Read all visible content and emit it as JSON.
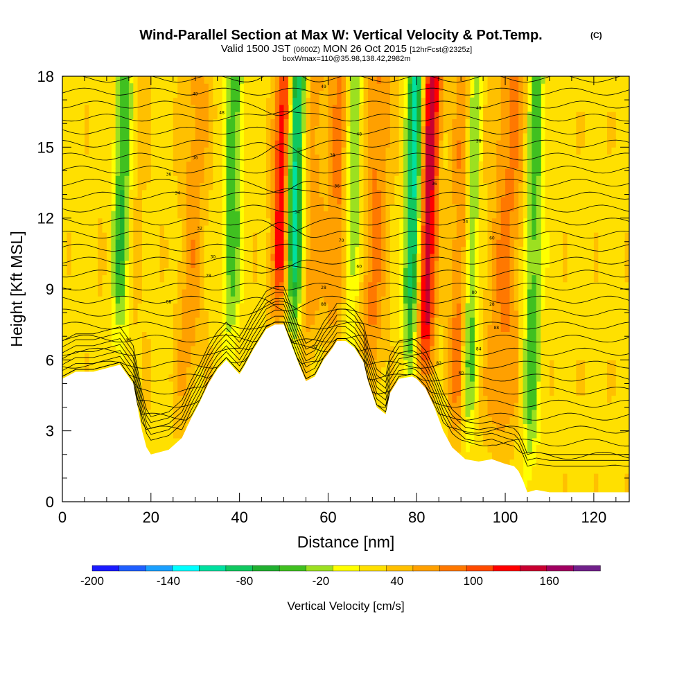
{
  "chart_data": {
    "type": "heatmap",
    "title": "Wind-Parallel Section at Max W: Vertical Velocity & Pot.Temp.",
    "title_mark": "(C)",
    "subtitle": {
      "valid_prefix": "Valid 1500 JST",
      "utc": "(0600Z)",
      "date": "MON 26 Oct 2015",
      "fcst": "[12hrFcst@2325z]"
    },
    "subtitle2": "boxWmax=110@35.98,138.42,2982m",
    "xlabel": "Distance [nm]",
    "ylabel": "Height [Kft MSL]",
    "xlim": [
      0,
      128
    ],
    "ylim": [
      0,
      18
    ],
    "x_ticks": [
      "0",
      "20",
      "40",
      "60",
      "80",
      "100",
      "120"
    ],
    "y_ticks": [
      "0",
      "3",
      "6",
      "9",
      "12",
      "15",
      "18"
    ],
    "colorbar": {
      "label": "Vertical Velocity [cm/s]",
      "tick_labels": [
        "-200",
        "-140",
        "-80",
        "-20",
        "40",
        "100",
        "160"
      ],
      "tick_values": [
        -200,
        -140,
        -80,
        -20,
        40,
        100,
        160
      ],
      "levels": [
        -200,
        -180,
        -160,
        -140,
        -120,
        -100,
        -80,
        -60,
        -40,
        -20,
        0,
        20,
        40,
        60,
        80,
        100,
        120,
        140,
        160,
        180
      ],
      "colors": [
        "#1a1aff",
        "#1f5fff",
        "#1aa0ff",
        "#00ffff",
        "#00e0a0",
        "#10c860",
        "#20b030",
        "#40c020",
        "#9ce020",
        "#ffff00",
        "#ffe000",
        "#ffc000",
        "#ffa000",
        "#ff7800",
        "#ff4a00",
        "#ff0000",
        "#c80030",
        "#a00060",
        "#70208a"
      ]
    },
    "terrain_profile": {
      "x": [
        0,
        3,
        7,
        13,
        16,
        18,
        19,
        20,
        24,
        27,
        29,
        31,
        33,
        35,
        37,
        39,
        40,
        41,
        43,
        44,
        46,
        48,
        50,
        51,
        53,
        55,
        57,
        59,
        61,
        62,
        64,
        66,
        68,
        69,
        71,
        73,
        74,
        76,
        79,
        80,
        82,
        84,
        86,
        88,
        91,
        94,
        97,
        100,
        102,
        103,
        104,
        105,
        107,
        110,
        115,
        120,
        128
      ],
      "y": [
        5.2,
        5.5,
        5.5,
        5.8,
        5.0,
        3.0,
        2.3,
        2.0,
        2.2,
        2.7,
        3.5,
        4.2,
        5.0,
        5.6,
        6.0,
        5.6,
        5.4,
        5.7,
        6.4,
        6.7,
        7.3,
        7.5,
        7.5,
        7.0,
        6.0,
        5.1,
        5.3,
        6.0,
        6.5,
        6.8,
        6.8,
        6.5,
        5.9,
        5.1,
        4.0,
        3.7,
        4.6,
        5.2,
        5.3,
        5.2,
        4.8,
        4.0,
        3.0,
        2.3,
        1.8,
        1.7,
        1.8,
        1.6,
        1.5,
        1.3,
        0.9,
        0.4,
        0.5,
        0.4,
        0.4,
        0.4,
        0.4
      ]
    },
    "updraft_columns": [
      {
        "x": 14,
        "w": 0.15,
        "width": 4.0
      },
      {
        "x": 29,
        "w": 0.3,
        "width": 3.0
      },
      {
        "x": 49,
        "w": 1.0,
        "width": 2.0
      },
      {
        "x": 55,
        "w": 0.35,
        "width": 3.0
      },
      {
        "x": 62,
        "w": 0.45,
        "width": 3.0
      },
      {
        "x": 70,
        "w": 0.4,
        "width": 3.0
      },
      {
        "x": 82,
        "w": 0.95,
        "width": 2.2
      },
      {
        "x": 90,
        "w": 0.5,
        "width": 2.5
      },
      {
        "x": 100,
        "w": 0.4,
        "width": 4.0
      }
    ],
    "downdraft_columns": [
      {
        "x": 13,
        "w": -0.6,
        "width": 2.0
      },
      {
        "x": 38,
        "w": -0.45,
        "width": 2.0
      },
      {
        "x": 52,
        "w": -1.0,
        "width": 2.2
      },
      {
        "x": 65,
        "w": -0.5,
        "width": 2.0
      },
      {
        "x": 79,
        "w": -0.85,
        "width": 1.8
      },
      {
        "x": 92,
        "w": -0.55,
        "width": 1.8
      },
      {
        "x": 106,
        "w": -0.45,
        "width": 2.0
      }
    ],
    "contour_labels": [
      {
        "x": 30,
        "y": 17.2,
        "text": "49"
      },
      {
        "x": 36,
        "y": 16.4,
        "text": "48"
      },
      {
        "x": 30,
        "y": 14.5,
        "text": "36"
      },
      {
        "x": 24,
        "y": 13.8,
        "text": "36"
      },
      {
        "x": 26,
        "y": 13.0,
        "text": "34"
      },
      {
        "x": 31,
        "y": 11.5,
        "text": "32"
      },
      {
        "x": 34,
        "y": 10.3,
        "text": "30"
      },
      {
        "x": 33,
        "y": 9.5,
        "text": "28"
      },
      {
        "x": 24,
        "y": 8.4,
        "text": "88"
      },
      {
        "x": 15,
        "y": 6.8,
        "text": "80"
      },
      {
        "x": 59,
        "y": 17.5,
        "text": "49"
      },
      {
        "x": 67,
        "y": 15.5,
        "text": "48"
      },
      {
        "x": 61,
        "y": 14.6,
        "text": "38"
      },
      {
        "x": 62,
        "y": 13.3,
        "text": "36"
      },
      {
        "x": 53,
        "y": 12.2,
        "text": "34"
      },
      {
        "x": 63,
        "y": 11.0,
        "text": "70"
      },
      {
        "x": 67,
        "y": 9.9,
        "text": "60"
      },
      {
        "x": 59,
        "y": 9.0,
        "text": "28"
      },
      {
        "x": 59,
        "y": 8.3,
        "text": "88"
      },
      {
        "x": 57,
        "y": 6.5,
        "text": "82"
      },
      {
        "x": 94,
        "y": 16.6,
        "text": "48"
      },
      {
        "x": 94,
        "y": 15.2,
        "text": "38"
      },
      {
        "x": 84,
        "y": 13.4,
        "text": "36"
      },
      {
        "x": 91,
        "y": 11.8,
        "text": "34"
      },
      {
        "x": 97,
        "y": 11.1,
        "text": "60"
      },
      {
        "x": 93,
        "y": 8.8,
        "text": "80"
      },
      {
        "x": 97,
        "y": 8.3,
        "text": "28"
      },
      {
        "x": 98,
        "y": 7.3,
        "text": "88"
      },
      {
        "x": 94,
        "y": 6.4,
        "text": "84"
      },
      {
        "x": 85,
        "y": 5.8,
        "text": "82"
      },
      {
        "x": 90,
        "y": 5.4,
        "text": "80"
      }
    ]
  }
}
